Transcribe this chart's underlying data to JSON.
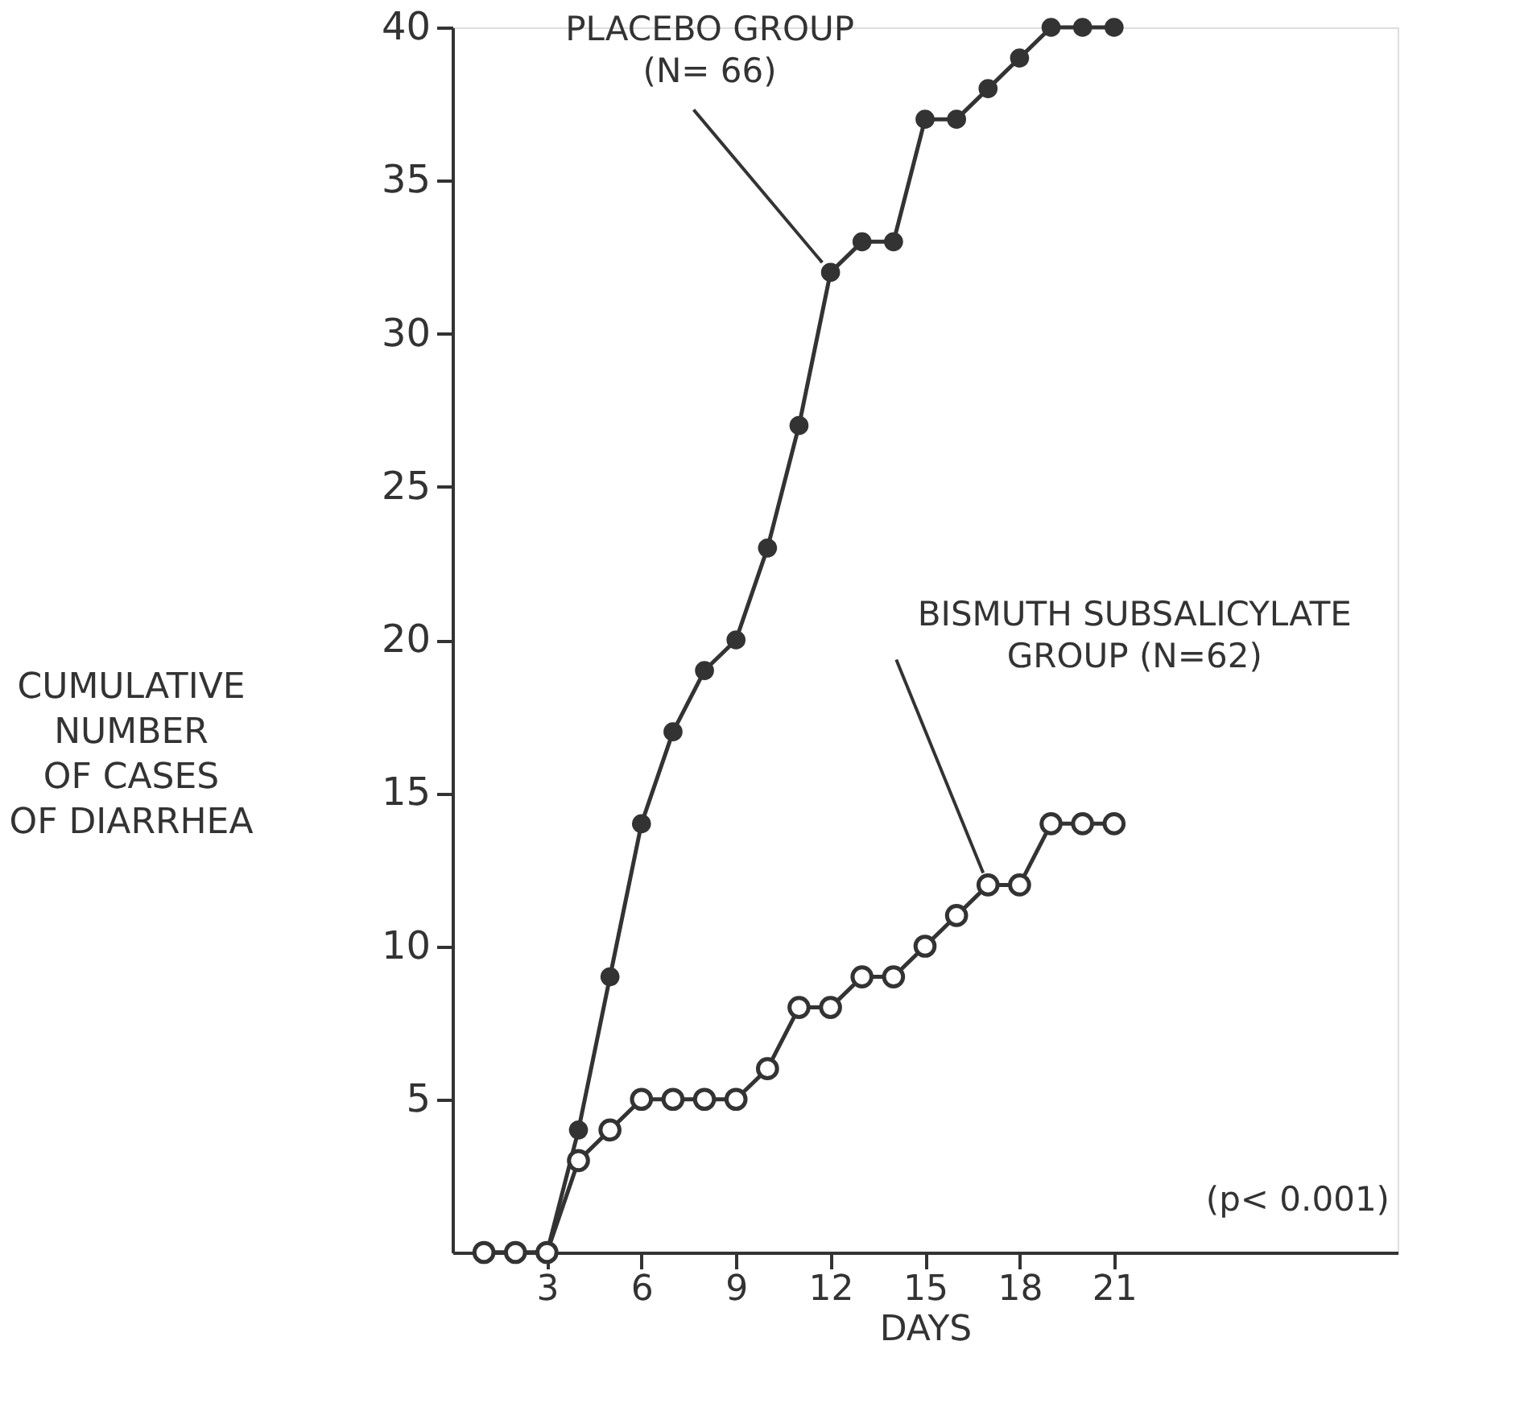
{
  "chart_data": {
    "type": "line",
    "xlabel": "DAYS",
    "ylabel": "CUMULATIVE\nNUMBER\nOF CASES\nOF DIARRHEA",
    "x": [
      1,
      2,
      3,
      4,
      5,
      6,
      7,
      8,
      9,
      10,
      11,
      12,
      13,
      14,
      15,
      16,
      17,
      18,
      19,
      20,
      21
    ],
    "series": [
      {
        "color": "#333333",
        "values": [
          0,
          0,
          0,
          4,
          9,
          14,
          17,
          19,
          20,
          23,
          27,
          32,
          33,
          33,
          37,
          37,
          38,
          39,
          40,
          40,
          40
        ]
      },
      {
        "color": "#333333",
        "values": [
          0,
          0,
          0,
          3,
          4,
          5,
          5,
          5,
          5,
          6,
          8,
          8,
          9,
          9,
          10,
          11,
          12,
          12,
          14,
          14,
          14
        ]
      }
    ],
    "xlim": [
      0,
      30
    ],
    "xticks": [
      3,
      6,
      9,
      12,
      15,
      18,
      21
    ],
    "ylim": [
      0,
      40
    ],
    "yticks": [
      5,
      10,
      15,
      20,
      25,
      30,
      35,
      40
    ],
    "grid": false,
    "legend": false,
    "marker": "circle",
    "line_style": "solid",
    "annotations": [
      {
        "text": "PLACEBO GROUP\n(N= 66)",
        "x": 12,
        "y": 32
      },
      {
        "text": "BISMUTH SUBSALICYLATE\nGROUP (N=62)",
        "x": 17,
        "y": 12
      },
      "(p< 0.001)"
    ]
  }
}
